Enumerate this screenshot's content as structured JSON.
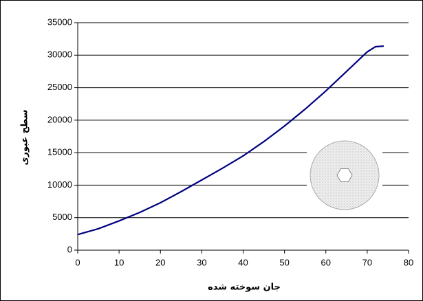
{
  "chart_data": {
    "type": "line",
    "x_label": "جان سوخته شده",
    "y_label": "سطح عبوری",
    "x": [
      0,
      5,
      10,
      15,
      20,
      25,
      30,
      35,
      40,
      45,
      50,
      55,
      60,
      65,
      70,
      72,
      74
    ],
    "values": [
      2400,
      3300,
      4500,
      5800,
      7300,
      9000,
      10800,
      12600,
      14500,
      16700,
      19100,
      21700,
      24500,
      27500,
      30500,
      31300,
      31400
    ],
    "color": "#000080",
    "xlim": [
      0,
      80
    ],
    "xticks": [
      0,
      10,
      20,
      30,
      40,
      50,
      60,
      70,
      80
    ],
    "ylim": [
      0,
      35000
    ],
    "yticks": [
      0,
      5000,
      10000,
      15000,
      20000,
      25000,
      30000,
      35000
    ],
    "grid": true
  }
}
